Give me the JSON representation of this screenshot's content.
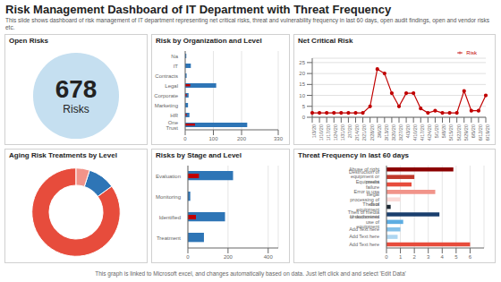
{
  "title": "Risk Management Dashboard of IT Department with Threat Frequency",
  "subtitle": "This slide shows dashboard of risk management of IT department representing net critical risks, threat and vulnerability frequency in last 60 days, open audit findings, open and vendor risks etc.",
  "annotations": [
    "This graph is linked to Microsoft excel, and changes automatically based on data. Just left click and and select 'Edit Data'"
  ],
  "chart_data": [
    {
      "type": "kpi",
      "title": "Open Risks",
      "values": [
        678
      ],
      "annotations": [
        "Risks"
      ],
      "color": "#c5dff0"
    },
    {
      "type": "bar",
      "title": "Risk by Organization and Level",
      "orientation": "horizontal",
      "categories": [
        "One Trust",
        "HR",
        "Marketing",
        "Corporate",
        "Legal",
        "Contracts",
        "IT",
        "Na"
      ],
      "series": [
        {
          "color": "#2e75b6",
          "values": [
            220,
            15,
            10,
            12,
            110,
            5,
            20,
            4
          ]
        },
        {
          "color": "#c00000",
          "values": [
            35,
            5,
            0,
            5,
            18,
            0,
            0,
            0
          ]
        }
      ],
      "xlim": [
        0,
        330
      ],
      "xticks": [
        0,
        100,
        200,
        330
      ],
      "grid": true
    },
    {
      "type": "line",
      "title": "Net Critical Risk",
      "categories": [
        "1/3/20",
        "1/10/20",
        "1/17/20",
        "1/24/20",
        "1/31/20",
        "2/7/20",
        "2/14/20",
        "2/21/20",
        "2/28/20",
        "3/6/20",
        "3/13/20",
        "3/20/20",
        "3/27/20",
        "4/3/20",
        "4/10/20",
        "4/17/20",
        "4/24/20",
        "5/1/20",
        "5/8/20",
        "5/15/20",
        "5/22/20",
        "5/29/20",
        "6/5/20",
        "6/12/20",
        "6/19/20"
      ],
      "series": [
        {
          "name": "Risk",
          "color": "#c00000",
          "marker": "circle",
          "values": [
            2,
            2,
            2,
            2,
            2,
            2,
            2,
            2,
            5,
            22,
            20,
            11,
            5,
            11,
            11,
            4,
            2,
            3,
            2,
            2,
            2,
            12,
            3,
            3,
            10
          ]
        }
      ],
      "ylim": [
        0,
        27
      ],
      "yticks": [
        0,
        5,
        10,
        15,
        20,
        25
      ],
      "grid": true,
      "legend": "upper right"
    },
    {
      "type": "donut",
      "title": "Aging Risk Treatments by Level",
      "values": [
        85,
        10,
        5
      ],
      "colors": [
        "#e74c3c",
        "#2e75b6",
        "#f1948a"
      ]
    },
    {
      "type": "bar",
      "title": "Risks by Stage and Level",
      "orientation": "horizontal",
      "categories": [
        "Treatment",
        "Identified",
        "Monitoring",
        "Evaluation"
      ],
      "series": [
        {
          "color": "#2e75b6",
          "values": [
            80,
            185,
            12,
            225
          ]
        },
        {
          "color": "#c00000",
          "values": [
            0,
            40,
            0,
            55
          ]
        }
      ],
      "xlim": [
        0,
        450
      ],
      "xticks": [
        0,
        200,
        400
      ],
      "grid": true
    },
    {
      "type": "bar",
      "title": "Threat Frequency in last  60 days",
      "orientation": "horizontal",
      "categories": [
        "Abuse of right",
        "Destruction of equipment or media",
        "Equipment failure",
        "Error in use",
        "Illegal processing of data",
        "Theft of equipment",
        "Theft of media or documents",
        "Unauthorized use of equipment",
        "Add Text here",
        "Add Text here",
        "Add Text here"
      ],
      "values": [
        4.8,
        2.0,
        1.8,
        3.5,
        1.0,
        0.3,
        3.8,
        1.2,
        1.0,
        0.8,
        6.0
      ],
      "colors": [
        "#8b0000",
        "#c0392b",
        "#e74c3c",
        "#f1948a",
        "#fadbd8",
        "#1c2833",
        "#1a3f6e",
        "#5dade2",
        "#85c1e9",
        "#aed6f1",
        "#e74c3c"
      ],
      "xlim": [
        0,
        7
      ],
      "xticks": [
        0,
        1,
        2,
        3,
        4,
        5,
        6
      ],
      "grid": true
    }
  ]
}
